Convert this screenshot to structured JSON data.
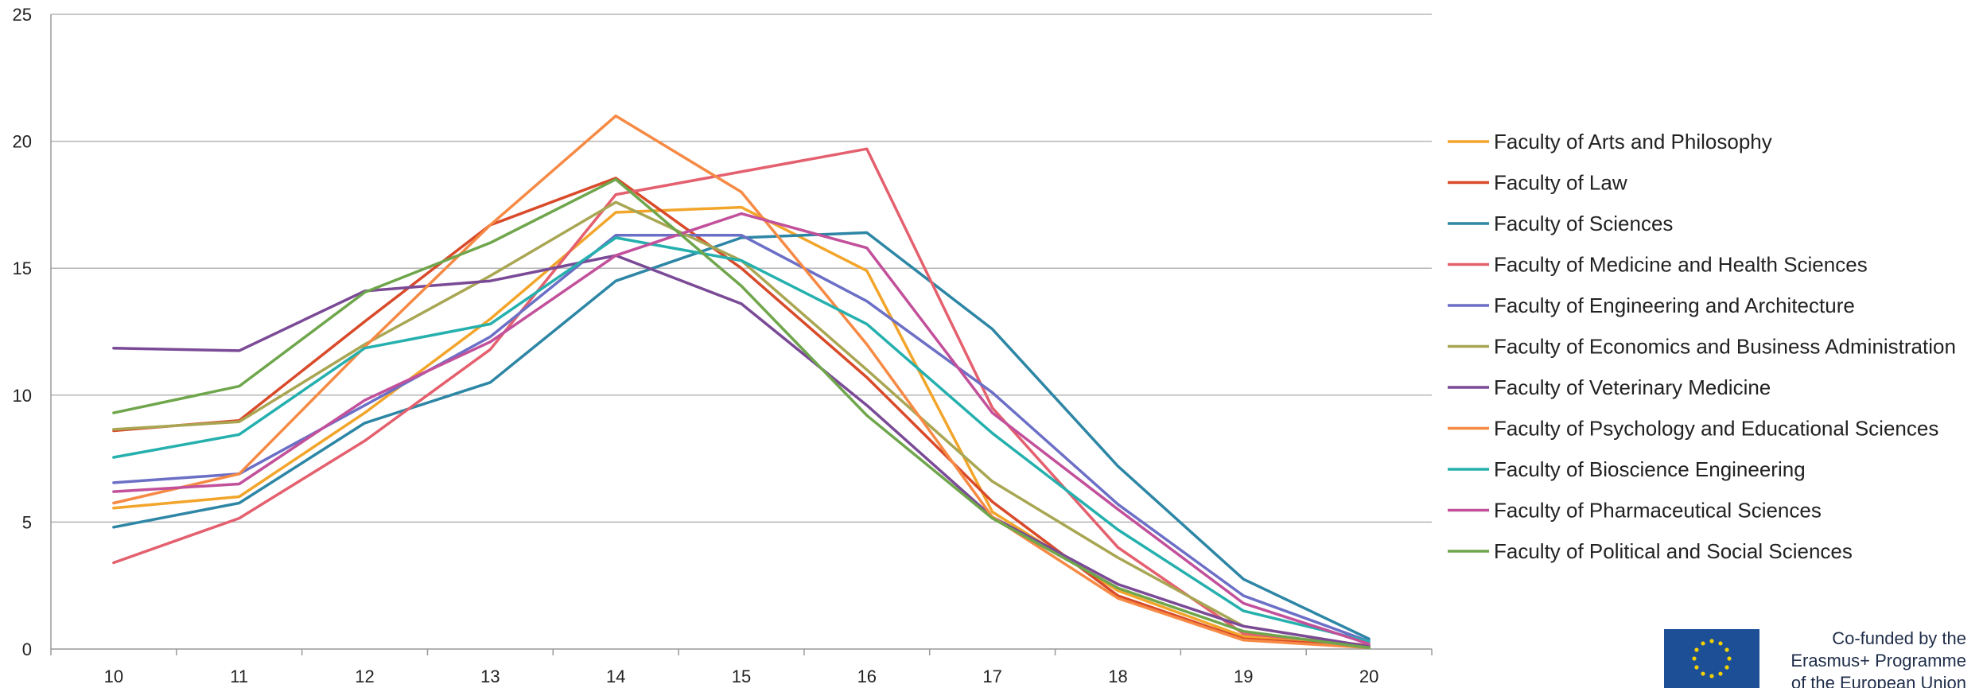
{
  "chart_data": {
    "type": "line",
    "title": "",
    "xlabel": "",
    "ylabel": "",
    "x": [
      10,
      11,
      12,
      13,
      14,
      15,
      16,
      17,
      18,
      19,
      20
    ],
    "ylim": [
      0,
      25
    ],
    "yticks": [
      0,
      5,
      10,
      15,
      20,
      25
    ],
    "grid": true,
    "legend_position": "right",
    "series": [
      {
        "name": "Faculty of Arts and Philosophy",
        "color": "#f2a52a",
        "values": [
          5.55,
          6.0,
          9.3,
          13.0,
          17.2,
          17.4,
          14.9,
          5.4,
          2.3,
          0.5,
          0.1
        ]
      },
      {
        "name": "Faculty of Law",
        "color": "#d84a2a",
        "values": [
          8.6,
          9.0,
          12.9,
          16.7,
          18.55,
          15.0,
          10.7,
          5.8,
          2.1,
          0.4,
          0.1
        ]
      },
      {
        "name": "Faculty of Sciences",
        "color": "#2d86a5",
        "values": [
          4.8,
          5.75,
          8.9,
          10.5,
          14.5,
          16.2,
          16.4,
          12.6,
          7.2,
          2.75,
          0.4
        ]
      },
      {
        "name": "Faculty of Medicine and Health Sciences",
        "color": "#e4606e",
        "values": [
          3.4,
          5.15,
          8.2,
          11.8,
          17.9,
          18.8,
          19.7,
          9.5,
          4.0,
          0.6,
          0.15
        ]
      },
      {
        "name": "Faculty of Engineering and Architecture",
        "color": "#6b6fc6",
        "values": [
          6.55,
          6.9,
          9.6,
          12.3,
          16.3,
          16.3,
          13.7,
          10.1,
          5.7,
          2.1,
          0.3
        ]
      },
      {
        "name": "Faculty of Economics and Business Administration",
        "color": "#a9a653",
        "values": [
          8.65,
          8.95,
          12.0,
          14.7,
          17.6,
          15.3,
          11.0,
          6.6,
          3.6,
          0.9,
          0.1
        ]
      },
      {
        "name": "Faculty of Veterinary Medicine",
        "color": "#7a4a96",
        "values": [
          11.85,
          11.75,
          14.1,
          14.5,
          15.5,
          13.6,
          9.6,
          5.2,
          2.55,
          0.9,
          0.1
        ]
      },
      {
        "name": "Faculty of Psychology and Educational Sciences",
        "color": "#f68a45",
        "values": [
          5.75,
          6.9,
          11.9,
          16.7,
          21.0,
          18.0,
          12.0,
          5.2,
          2.0,
          0.35,
          0.05
        ]
      },
      {
        "name": "Faculty of Bioscience Engineering",
        "color": "#25b0ae",
        "values": [
          7.55,
          8.45,
          11.85,
          12.8,
          16.2,
          15.3,
          12.8,
          8.5,
          4.7,
          1.5,
          0.3
        ]
      },
      {
        "name": "Faculty of Pharmaceutical Sciences",
        "color": "#c2509a",
        "values": [
          6.2,
          6.5,
          9.8,
          12.1,
          15.5,
          17.15,
          15.8,
          9.3,
          5.5,
          1.8,
          0.2
        ]
      },
      {
        "name": "Faculty of Political and Social Sciences",
        "color": "#6fa64c",
        "values": [
          9.3,
          10.35,
          14.05,
          16.0,
          18.5,
          14.3,
          9.2,
          5.15,
          2.4,
          0.7,
          0.05
        ]
      }
    ]
  },
  "branding": {
    "line1": "Co-funded by the",
    "line2": "Erasmus+ Programme",
    "line3": "of the European Union",
    "icon": "eu-flag-icon",
    "flag_color": "#1d4f96",
    "star_color": "#f5d000"
  }
}
